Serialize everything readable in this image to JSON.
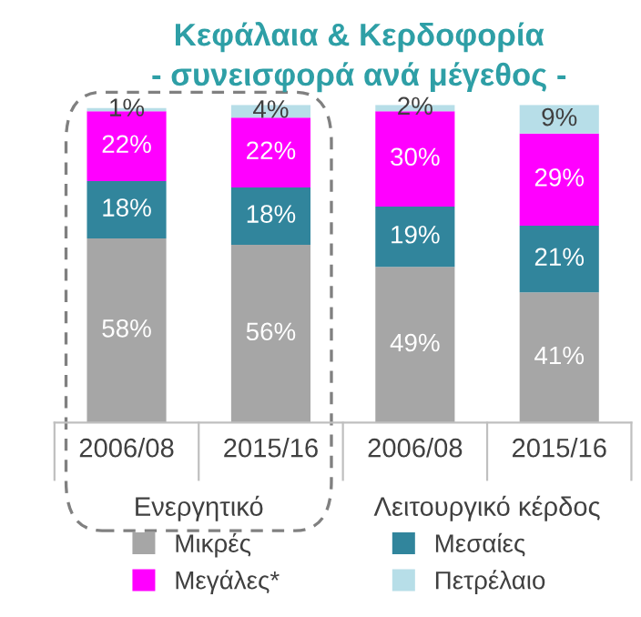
{
  "chart_data": {
    "type": "bar",
    "stacked": true,
    "title": "Κεφάλαια & Κερδοφορία",
    "subtitle": "- συνεισφορά ανά μέγεθος -",
    "categories": [
      "2006/08",
      "2015/16",
      "2006/08",
      "2015/16"
    ],
    "annotations": [
      "Ενεργητικό",
      "Λειτουργικό κέρδος"
    ],
    "series": [
      {
        "name": "Μικρές",
        "color": "#a6a6a6",
        "values": [
          58,
          56,
          49,
          41
        ],
        "value_labels": [
          "58%",
          "56%",
          "49%",
          "41%"
        ]
      },
      {
        "name": "Μεσαίες",
        "color": "#31859c",
        "values": [
          18,
          18,
          19,
          21
        ],
        "value_labels": [
          "18%",
          "18%",
          "19%",
          "21%"
        ]
      },
      {
        "name": "Μεγάλες*",
        "color": "#ff00ff",
        "values": [
          22,
          22,
          30,
          29
        ],
        "value_labels": [
          "22%",
          "22%",
          "30%",
          "29%"
        ]
      },
      {
        "name": "Πετρέλαιο",
        "color": "#b7dee8",
        "values": [
          1,
          4,
          2,
          9
        ],
        "value_labels": [
          "1%",
          "4%",
          "2%",
          "9%"
        ]
      }
    ],
    "legend": "bottom",
    "grid": false
  }
}
